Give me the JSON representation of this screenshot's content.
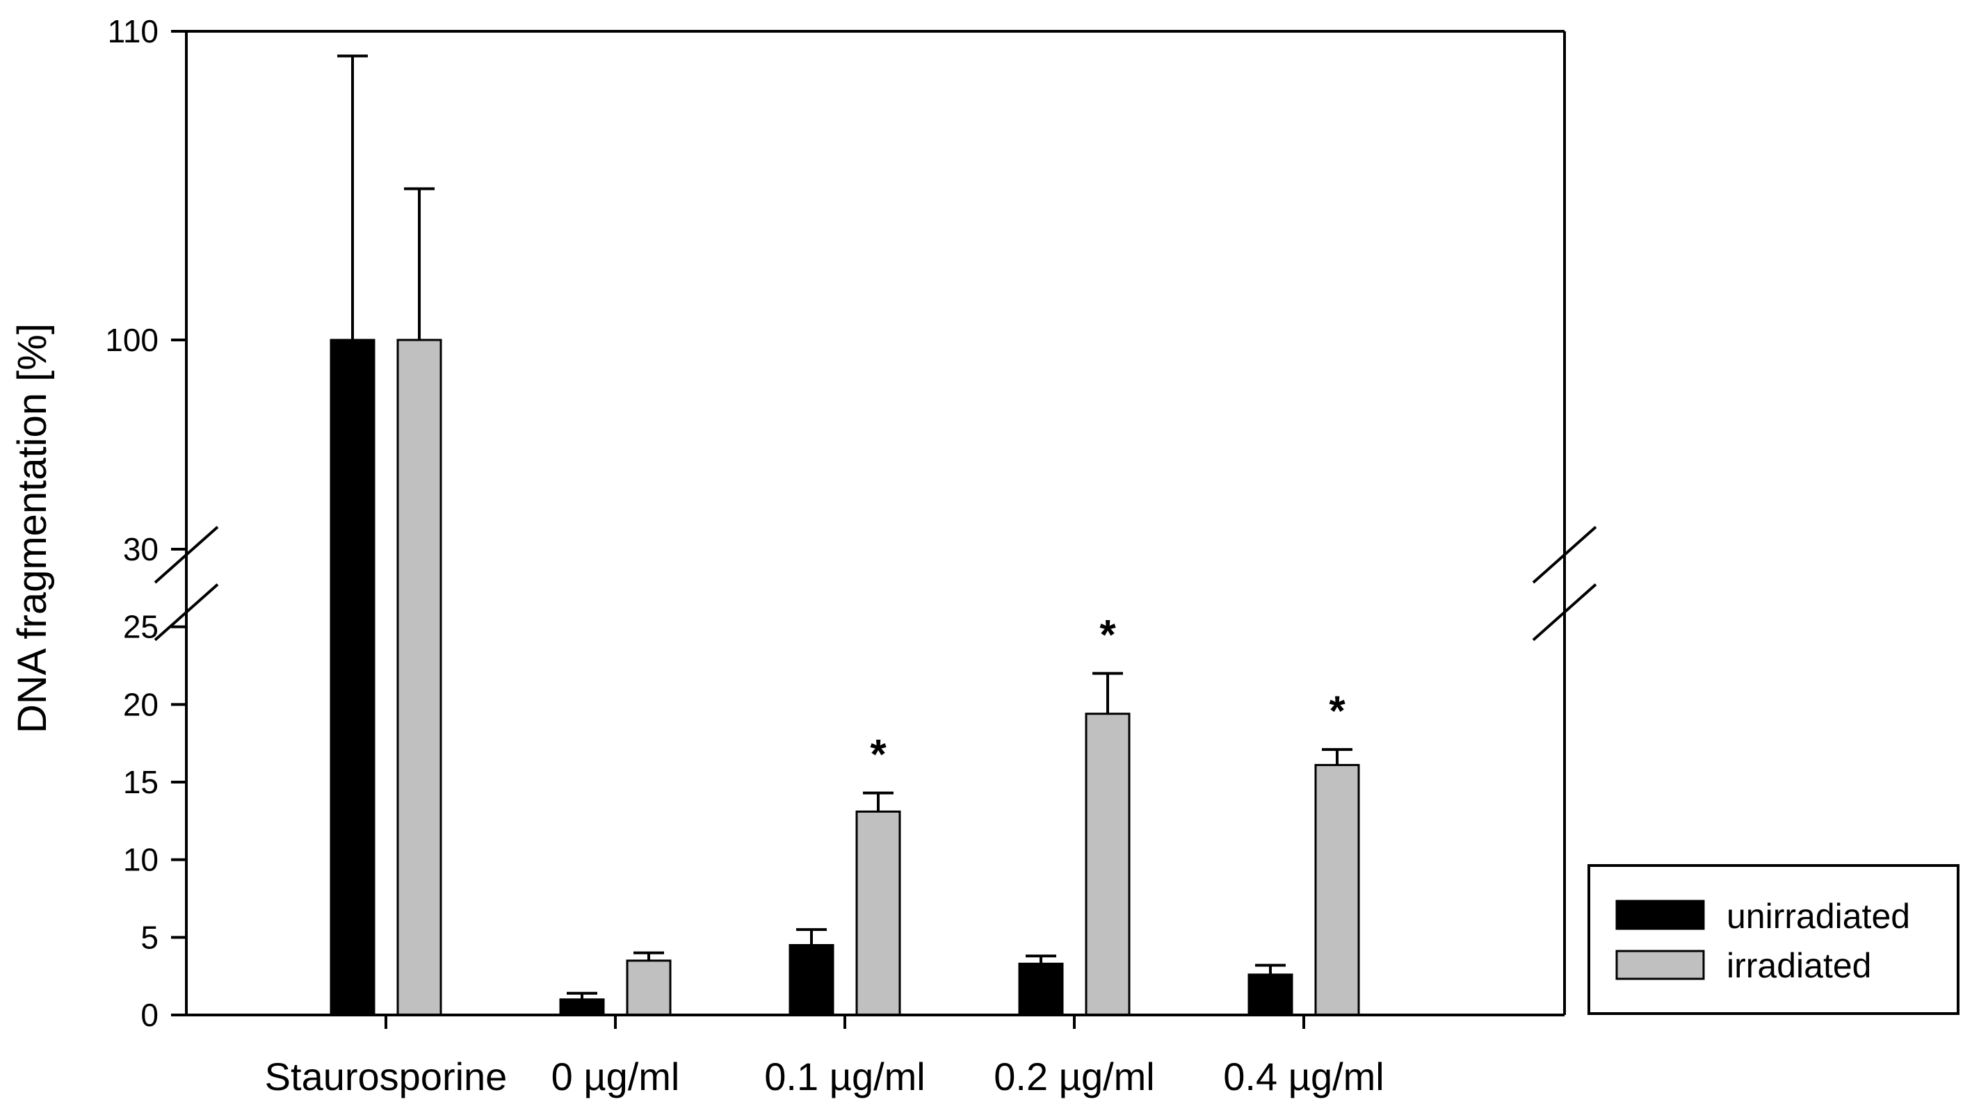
{
  "chart_data": {
    "type": "bar",
    "title": "",
    "xlabel": "",
    "ylabel": "DNA fragmentation [%]",
    "categories": [
      "Staurosporine",
      "0 µg/ml",
      "0.1 µg/ml",
      "0.2 µg/ml",
      "0.4 µg/ml"
    ],
    "series": [
      {
        "name": "unirradiated",
        "color": "#000000",
        "values": [
          100,
          1.0,
          4.5,
          3.3,
          2.6
        ],
        "errors": [
          9.2,
          0.4,
          1.0,
          0.5,
          0.6
        ]
      },
      {
        "name": "irradiated",
        "color": "#c0c0c0",
        "values": [
          100,
          3.5,
          13.1,
          19.4,
          16.1
        ],
        "errors": [
          4.9,
          0.5,
          1.2,
          2.6,
          1.0
        ]
      }
    ],
    "significance": [
      {
        "category": "0.1 µg/ml",
        "series": "irradiated",
        "label": "*"
      },
      {
        "category": "0.2 µg/ml",
        "series": "irradiated",
        "label": "*"
      },
      {
        "category": "0.4 µg/ml",
        "series": "irradiated",
        "label": "*"
      }
    ],
    "axis_break": {
      "lower": [
        0,
        30
      ],
      "upper": [
        91,
        110
      ]
    },
    "lower_ticks": [
      0,
      5,
      10,
      15,
      20,
      25,
      30
    ],
    "upper_ticks": [
      100,
      110
    ],
    "grid": false,
    "legend_position": "bottom-right, outside plot"
  }
}
